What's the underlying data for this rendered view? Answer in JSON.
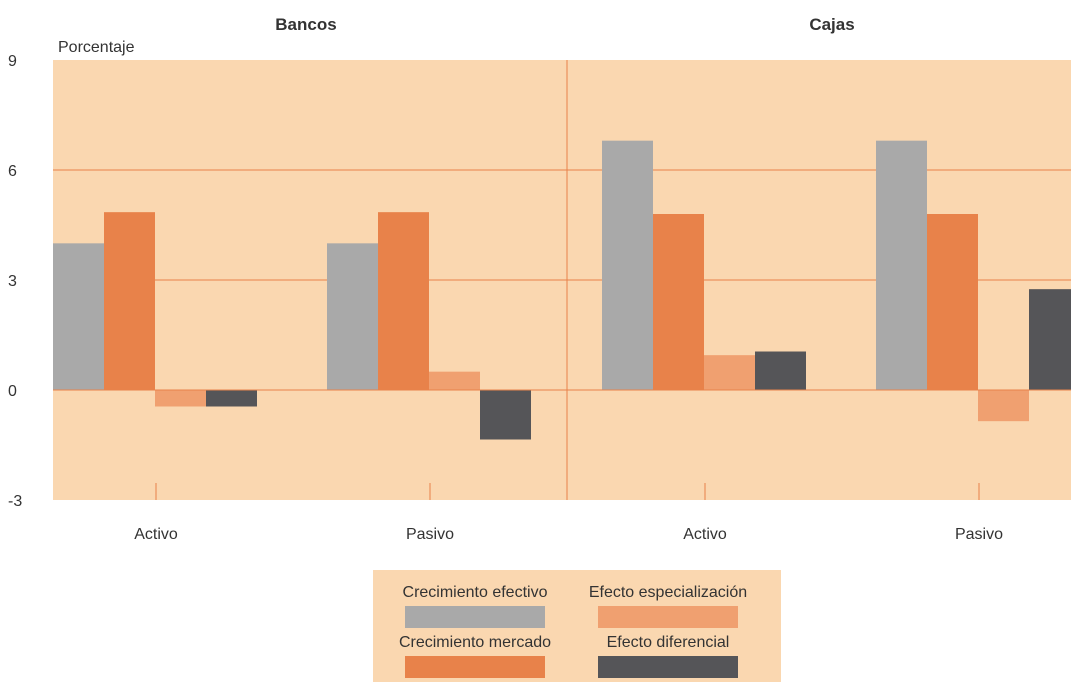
{
  "chart_data": {
    "type": "bar",
    "panels": [
      "Bancos",
      "Cajas"
    ],
    "ylabel": "Porcentaje",
    "ylim": [
      -3,
      9
    ],
    "yticks": [
      "9",
      "6",
      "3",
      "0",
      "-3"
    ],
    "grid": true,
    "categories": [
      "Activo",
      "Pasivo",
      "Activo",
      "Pasivo"
    ],
    "series": [
      {
        "name": "Crecimiento efectivo",
        "color": "#a9a9a9",
        "values": [
          4.0,
          4.0,
          6.8,
          6.8
        ]
      },
      {
        "name": "Crecimiento mercado",
        "color": "#e8824a",
        "values": [
          4.85,
          4.85,
          4.8,
          4.8
        ]
      },
      {
        "name": "Efecto especialización",
        "color": "#f0a070",
        "values": [
          -0.45,
          0.5,
          0.95,
          -0.85
        ]
      },
      {
        "name": "Efecto diferencial",
        "color": "#555558",
        "values": [
          -0.45,
          -1.35,
          1.05,
          2.75
        ]
      }
    ],
    "legend_position": "bottom-center"
  }
}
